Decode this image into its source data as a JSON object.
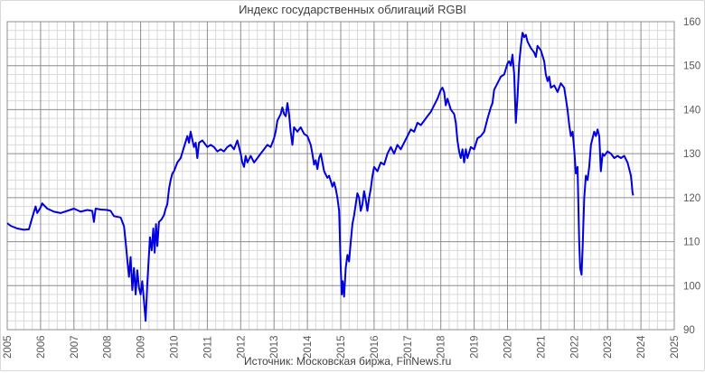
{
  "title": "Индекс государственных облигаций RGBI",
  "source": "Источник: Московская биржа, FinNews.ru",
  "colors": {
    "line": "#0000e0",
    "major_grid": "#8c8c8c",
    "minor_grid": "#d9d9d9",
    "axis_text": "#595959"
  },
  "chart_data": {
    "type": "line",
    "title": "Индекс государственных облигаций RGBI",
    "xlabel": "",
    "ylabel": "",
    "x_ticks": [
      "2005",
      "2006",
      "2007",
      "2008",
      "2009",
      "2010",
      "2011",
      "2012",
      "2013",
      "2014",
      "2015",
      "2016",
      "2017",
      "2018",
      "2019",
      "2020",
      "2021",
      "2022",
      "2023",
      "2024",
      "2025"
    ],
    "y_ticks": [
      90,
      100,
      110,
      120,
      130,
      140,
      150,
      160
    ],
    "xlim": [
      2005,
      2025
    ],
    "ylim": [
      90,
      160
    ],
    "grid": true,
    "y_axis_position": "right",
    "legend": "none",
    "series": [
      {
        "name": "RGBI",
        "points": [
          [
            2005.0,
            114.2
          ],
          [
            2005.1,
            113.6
          ],
          [
            2005.3,
            113.0
          ],
          [
            2005.5,
            112.7
          ],
          [
            2005.65,
            112.8
          ],
          [
            2005.75,
            115.5
          ],
          [
            2005.85,
            118.0
          ],
          [
            2005.9,
            116.5
          ],
          [
            2006.0,
            117.8
          ],
          [
            2006.05,
            118.7
          ],
          [
            2006.2,
            117.5
          ],
          [
            2006.4,
            116.8
          ],
          [
            2006.6,
            116.5
          ],
          [
            2006.8,
            117.0
          ],
          [
            2007.0,
            117.5
          ],
          [
            2007.2,
            116.8
          ],
          [
            2007.4,
            117.2
          ],
          [
            2007.55,
            117.0
          ],
          [
            2007.6,
            114.5
          ],
          [
            2007.65,
            117.5
          ],
          [
            2007.8,
            117.3
          ],
          [
            2008.0,
            117.2
          ],
          [
            2008.1,
            117.0
          ],
          [
            2008.2,
            115.8
          ],
          [
            2008.4,
            115.5
          ],
          [
            2008.5,
            113.5
          ],
          [
            2008.55,
            110.0
          ],
          [
            2008.6,
            106.0
          ],
          [
            2008.65,
            102.0
          ],
          [
            2008.7,
            106.5
          ],
          [
            2008.75,
            99.0
          ],
          [
            2008.8,
            104.0
          ],
          [
            2008.85,
            98.0
          ],
          [
            2008.9,
            103.5
          ],
          [
            2008.95,
            99.5
          ],
          [
            2009.0,
            98.0
          ],
          [
            2009.05,
            101.0
          ],
          [
            2009.1,
            96.5
          ],
          [
            2009.15,
            92.0
          ],
          [
            2009.2,
            100.5
          ],
          [
            2009.28,
            111.0
          ],
          [
            2009.33,
            108.0
          ],
          [
            2009.38,
            113.0
          ],
          [
            2009.42,
            107.5
          ],
          [
            2009.46,
            114.0
          ],
          [
            2009.5,
            109.0
          ],
          [
            2009.55,
            114.5
          ],
          [
            2009.62,
            115.0
          ],
          [
            2009.7,
            116.0
          ],
          [
            2009.75,
            117.5
          ],
          [
            2009.8,
            118.5
          ],
          [
            2009.85,
            122.0
          ],
          [
            2009.9,
            124.0
          ],
          [
            2009.95,
            125.5
          ],
          [
            2010.0,
            126.0
          ],
          [
            2010.1,
            128.0
          ],
          [
            2010.2,
            129.0
          ],
          [
            2010.3,
            131.5
          ],
          [
            2010.4,
            134.0
          ],
          [
            2010.45,
            132.5
          ],
          [
            2010.5,
            135.0
          ],
          [
            2010.6,
            131.5
          ],
          [
            2010.65,
            132.5
          ],
          [
            2010.7,
            129.0
          ],
          [
            2010.75,
            132.5
          ],
          [
            2010.85,
            133.0
          ],
          [
            2011.0,
            131.5
          ],
          [
            2011.1,
            132.0
          ],
          [
            2011.2,
            131.5
          ],
          [
            2011.3,
            130.5
          ],
          [
            2011.4,
            131.0
          ],
          [
            2011.5,
            130.5
          ],
          [
            2011.6,
            131.5
          ],
          [
            2011.7,
            132.0
          ],
          [
            2011.8,
            131.0
          ],
          [
            2011.9,
            133.0
          ],
          [
            2012.0,
            130.0
          ],
          [
            2012.05,
            128.0
          ],
          [
            2012.1,
            127.0
          ],
          [
            2012.15,
            129.5
          ],
          [
            2012.2,
            128.0
          ],
          [
            2012.3,
            129.5
          ],
          [
            2012.4,
            128.0
          ],
          [
            2012.5,
            129.0
          ],
          [
            2012.6,
            130.0
          ],
          [
            2012.7,
            131.0
          ],
          [
            2012.8,
            132.0
          ],
          [
            2012.9,
            131.5
          ],
          [
            2013.0,
            133.5
          ],
          [
            2013.05,
            135.0
          ],
          [
            2013.1,
            137.5
          ],
          [
            2013.2,
            139.0
          ],
          [
            2013.25,
            140.5
          ],
          [
            2013.3,
            139.0
          ],
          [
            2013.35,
            138.5
          ],
          [
            2013.4,
            141.5
          ],
          [
            2013.45,
            139.0
          ],
          [
            2013.5,
            135.0
          ],
          [
            2013.55,
            132.0
          ],
          [
            2013.6,
            136.0
          ],
          [
            2013.7,
            135.0
          ],
          [
            2013.8,
            136.0
          ],
          [
            2013.9,
            134.5
          ],
          [
            2014.0,
            134.0
          ],
          [
            2014.1,
            132.0
          ],
          [
            2014.15,
            130.0
          ],
          [
            2014.2,
            127.5
          ],
          [
            2014.25,
            128.5
          ],
          [
            2014.3,
            126.5
          ],
          [
            2014.35,
            129.0
          ],
          [
            2014.4,
            130.0
          ],
          [
            2014.5,
            126.0
          ],
          [
            2014.6,
            124.5
          ],
          [
            2014.65,
            125.0
          ],
          [
            2014.75,
            122.5
          ],
          [
            2014.8,
            123.5
          ],
          [
            2014.85,
            122.0
          ],
          [
            2014.9,
            120.0
          ],
          [
            2014.95,
            117.0
          ],
          [
            2015.0,
            104.0
          ],
          [
            2015.03,
            98.0
          ],
          [
            2015.06,
            101.0
          ],
          [
            2015.1,
            97.5
          ],
          [
            2015.15,
            104.0
          ],
          [
            2015.2,
            107.0
          ],
          [
            2015.25,
            105.5
          ],
          [
            2015.3,
            110.0
          ],
          [
            2015.35,
            114.0
          ],
          [
            2015.4,
            116.0
          ],
          [
            2015.45,
            118.5
          ],
          [
            2015.5,
            121.0
          ],
          [
            2015.55,
            120.0
          ],
          [
            2015.6,
            117.0
          ],
          [
            2015.65,
            118.5
          ],
          [
            2015.7,
            121.5
          ],
          [
            2015.75,
            119.5
          ],
          [
            2015.8,
            117.0
          ],
          [
            2015.85,
            120.0
          ],
          [
            2015.9,
            122.0
          ],
          [
            2015.95,
            125.0
          ],
          [
            2016.0,
            127.0
          ],
          [
            2016.1,
            126.0
          ],
          [
            2016.2,
            128.0
          ],
          [
            2016.3,
            127.5
          ],
          [
            2016.4,
            130.0
          ],
          [
            2016.5,
            131.5
          ],
          [
            2016.6,
            130.0
          ],
          [
            2016.7,
            132.0
          ],
          [
            2016.8,
            131.0
          ],
          [
            2016.9,
            132.5
          ],
          [
            2017.0,
            134.0
          ],
          [
            2017.1,
            135.5
          ],
          [
            2017.2,
            135.0
          ],
          [
            2017.3,
            137.0
          ],
          [
            2017.4,
            136.5
          ],
          [
            2017.5,
            137.5
          ],
          [
            2017.6,
            138.5
          ],
          [
            2017.7,
            139.5
          ],
          [
            2017.8,
            141.0
          ],
          [
            2017.9,
            142.5
          ],
          [
            2018.0,
            144.5
          ],
          [
            2018.05,
            145.0
          ],
          [
            2018.1,
            144.0
          ],
          [
            2018.15,
            141.0
          ],
          [
            2018.2,
            142.5
          ],
          [
            2018.3,
            140.0
          ],
          [
            2018.4,
            139.0
          ],
          [
            2018.45,
            137.0
          ],
          [
            2018.5,
            133.0
          ],
          [
            2018.55,
            130.5
          ],
          [
            2018.6,
            129.0
          ],
          [
            2018.65,
            131.0
          ],
          [
            2018.7,
            128.0
          ],
          [
            2018.75,
            131.0
          ],
          [
            2018.8,
            129.0
          ],
          [
            2018.9,
            131.5
          ],
          [
            2019.0,
            131.0
          ],
          [
            2019.1,
            133.5
          ],
          [
            2019.2,
            134.0
          ],
          [
            2019.3,
            135.0
          ],
          [
            2019.4,
            138.0
          ],
          [
            2019.5,
            140.5
          ],
          [
            2019.55,
            141.5
          ],
          [
            2019.6,
            144.5
          ],
          [
            2019.7,
            146.0
          ],
          [
            2019.8,
            147.5
          ],
          [
            2019.9,
            148.0
          ],
          [
            2020.0,
            150.5
          ],
          [
            2020.05,
            151.0
          ],
          [
            2020.1,
            150.0
          ],
          [
            2020.15,
            152.5
          ],
          [
            2020.2,
            148.0
          ],
          [
            2020.25,
            137.0
          ],
          [
            2020.3,
            143.0
          ],
          [
            2020.35,
            150.5
          ],
          [
            2020.4,
            154.5
          ],
          [
            2020.45,
            157.5
          ],
          [
            2020.5,
            156.5
          ],
          [
            2020.55,
            157.0
          ],
          [
            2020.6,
            155.5
          ],
          [
            2020.7,
            154.0
          ],
          [
            2020.8,
            153.0
          ],
          [
            2020.85,
            152.0
          ],
          [
            2020.9,
            154.5
          ],
          [
            2021.0,
            153.5
          ],
          [
            2021.1,
            151.0
          ],
          [
            2021.15,
            148.0
          ],
          [
            2021.2,
            146.5
          ],
          [
            2021.25,
            147.5
          ],
          [
            2021.3,
            145.0
          ],
          [
            2021.4,
            145.5
          ],
          [
            2021.5,
            144.0
          ],
          [
            2021.6,
            146.0
          ],
          [
            2021.7,
            145.0
          ],
          [
            2021.75,
            142.5
          ],
          [
            2021.8,
            140.0
          ],
          [
            2021.85,
            136.5
          ],
          [
            2021.9,
            134.0
          ],
          [
            2021.95,
            135.0
          ],
          [
            2022.0,
            131.0
          ],
          [
            2022.05,
            125.5
          ],
          [
            2022.1,
            127.0
          ],
          [
            2022.15,
            110.0
          ],
          [
            2022.18,
            104.0
          ],
          [
            2022.22,
            102.5
          ],
          [
            2022.25,
            108.0
          ],
          [
            2022.3,
            120.0
          ],
          [
            2022.35,
            125.0
          ],
          [
            2022.4,
            124.0
          ],
          [
            2022.45,
            127.0
          ],
          [
            2022.5,
            132.0
          ],
          [
            2022.55,
            133.5
          ],
          [
            2022.6,
            135.0
          ],
          [
            2022.65,
            134.0
          ],
          [
            2022.7,
            135.5
          ],
          [
            2022.75,
            134.0
          ],
          [
            2022.8,
            126.0
          ],
          [
            2022.85,
            130.0
          ],
          [
            2022.9,
            129.5
          ],
          [
            2023.0,
            130.5
          ],
          [
            2023.1,
            130.0
          ],
          [
            2023.2,
            129.0
          ],
          [
            2023.3,
            129.5
          ],
          [
            2023.4,
            129.0
          ],
          [
            2023.5,
            129.5
          ],
          [
            2023.6,
            128.0
          ],
          [
            2023.65,
            126.5
          ],
          [
            2023.7,
            125.0
          ],
          [
            2023.72,
            123.5
          ],
          [
            2023.75,
            121.0
          ],
          [
            2023.77,
            120.5
          ]
        ]
      }
    ]
  }
}
